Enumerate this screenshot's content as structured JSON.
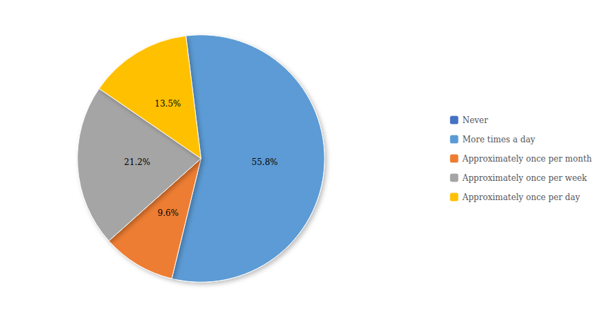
{
  "chart_data": {
    "type": "pie",
    "categories": [
      "Never",
      "More times a day",
      "Approximately once per month",
      "Approximately once per week",
      "Approximately once per day"
    ],
    "values": [
      null,
      55.8,
      9.6,
      21.2,
      13.5
    ],
    "value_labels": [
      null,
      "55.8%",
      "9.6%",
      "21.2%",
      "13.5%"
    ],
    "colors": [
      "#4472C4",
      "#5B9BD5",
      "#ED7D31",
      "#A5A5A5",
      "#FFC000"
    ],
    "data_labels": true,
    "legend": "right"
  }
}
